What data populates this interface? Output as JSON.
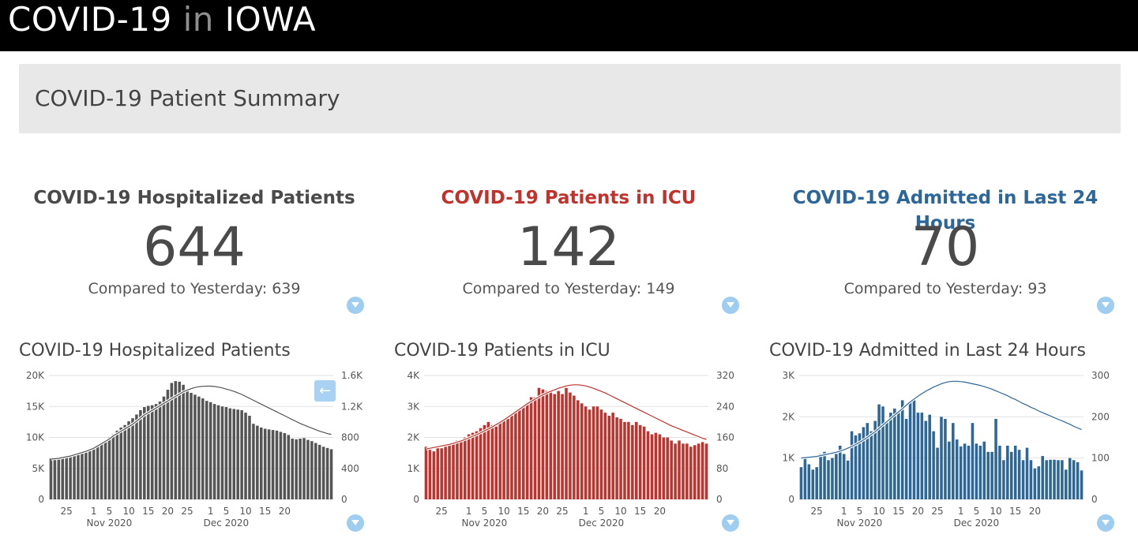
{
  "header": {
    "brand_part1": "COVID-19",
    "brand_part2": "in",
    "brand_part3": "IOWA"
  },
  "summary": {
    "title": "COVID-19 Patient Summary"
  },
  "kpis": [
    {
      "title": "COVID-19 Hospitalized Patients",
      "value": "644",
      "compare": "Compared to Yesterday: 639",
      "color": "#4a4a4a"
    },
    {
      "title": "COVID-19 Patients in ICU",
      "value": "142",
      "compare": "Compared to Yesterday: 149",
      "color": "#c0322b"
    },
    {
      "title": "COVID-19 Admitted in Last 24 Hours",
      "value": "70",
      "compare": "Compared to Yesterday: 93",
      "color": "#2d6698"
    }
  ],
  "icons": {
    "filter": "filter-icon",
    "back": "arrow-left-icon"
  },
  "back_glyph": "←",
  "chart_data": [
    {
      "type": "bar",
      "title": "COVID-19 Hospitalized Patients",
      "color": "#555555",
      "line_color": "#555555",
      "x_ticks": [
        "25",
        "1",
        "5",
        "10",
        "15",
        "20",
        "25",
        "1",
        "5",
        "10",
        "15",
        "20"
      ],
      "x_month_labels": [
        "Nov 2020",
        "Dec 2020"
      ],
      "y_left_ticks": [
        "0",
        "5K",
        "10K",
        "15K",
        "20K"
      ],
      "y_right_ticks": [
        "0",
        "400",
        "800",
        "1.2K",
        "1.6K"
      ],
      "ylim_left": [
        0,
        20000
      ],
      "ylim_right": [
        0,
        1600
      ],
      "grid": true,
      "values": [
        6600,
        6700,
        6800,
        6900,
        7000,
        7100,
        7200,
        7400,
        7600,
        7800,
        8000,
        8300,
        8700,
        9100,
        9500,
        10000,
        10500,
        11100,
        11600,
        12000,
        12600,
        13100,
        13700,
        14400,
        14900,
        15100,
        15200,
        15400,
        15800,
        16600,
        17700,
        18800,
        19100,
        19000,
        18500,
        17800,
        17200,
        16900,
        16600,
        16300,
        15900,
        15700,
        15400,
        15200,
        15000,
        14900,
        14700,
        14600,
        14500,
        14400,
        14000,
        13500,
        12200,
        11900,
        11600,
        11400,
        11300,
        11200,
        11100,
        10900,
        10700,
        10400,
        9800,
        9700,
        9800,
        9900,
        9600,
        9400,
        9100,
        8800,
        8500,
        8300,
        8100
      ],
      "line_values": [
        520,
        525,
        530,
        540,
        550,
        560,
        575,
        590,
        605,
        620,
        640,
        660,
        690,
        720,
        750,
        780,
        820,
        850,
        880,
        910,
        940,
        970,
        1010,
        1050,
        1090,
        1120,
        1150,
        1180,
        1210,
        1240,
        1270,
        1300,
        1330,
        1360,
        1390,
        1410,
        1430,
        1445,
        1455,
        1460,
        1462,
        1462,
        1458,
        1450,
        1440,
        1425,
        1410,
        1395,
        1375,
        1355,
        1330,
        1305,
        1280,
        1255,
        1230,
        1205,
        1180,
        1155,
        1130,
        1105,
        1080,
        1055,
        1030,
        1005,
        980,
        960,
        940,
        920,
        900,
        880,
        865,
        850,
        840
      ]
    },
    {
      "type": "bar",
      "title": "COVID-19 Patients in ICU",
      "color": "#c0322b",
      "line_color": "#c0322b",
      "x_ticks": [
        "25",
        "1",
        "5",
        "10",
        "15",
        "20",
        "25",
        "1",
        "5",
        "10",
        "15",
        "20"
      ],
      "x_month_labels": [
        "Nov 2020",
        "Dec 2020"
      ],
      "y_left_ticks": [
        "0",
        "1K",
        "2K",
        "3K",
        "4K"
      ],
      "y_right_ticks": [
        "0",
        "80",
        "160",
        "240",
        "320"
      ],
      "ylim_left": [
        0,
        4000
      ],
      "ylim_right": [
        0,
        320
      ],
      "grid": true,
      "values": [
        1700,
        1600,
        1550,
        1650,
        1650,
        1700,
        1750,
        1800,
        1900,
        1900,
        2000,
        2100,
        2150,
        2200,
        2300,
        2400,
        2500,
        2400,
        2350,
        2500,
        2550,
        2600,
        2700,
        2800,
        2900,
        3000,
        3050,
        3300,
        3300,
        3600,
        3550,
        3500,
        3450,
        3400,
        3500,
        3400,
        3600,
        3450,
        3350,
        3200,
        3100,
        3000,
        2900,
        3000,
        3000,
        2900,
        2800,
        2700,
        2800,
        2650,
        2600,
        2500,
        2500,
        2400,
        2500,
        2400,
        2350,
        2200,
        2100,
        2150,
        2100,
        2000,
        2000,
        1900,
        1800,
        1900,
        1800,
        1800,
        1700,
        1750,
        1800,
        1850,
        1800
      ],
      "line_values": [
        130,
        132,
        134,
        136,
        138,
        140,
        142,
        145,
        148,
        151,
        155,
        159,
        163,
        167,
        172,
        177,
        182,
        187,
        193,
        199,
        205,
        212,
        219,
        226,
        233,
        240,
        247,
        253,
        259,
        265,
        270,
        275,
        279,
        283,
        287,
        290,
        293,
        295,
        296,
        296,
        295,
        293,
        290,
        287,
        283,
        279,
        275,
        270,
        265,
        260,
        255,
        250,
        245,
        240,
        235,
        230,
        225,
        220,
        215,
        210,
        205,
        200,
        195,
        190,
        186,
        182,
        178,
        174,
        170,
        166,
        162,
        158,
        155
      ]
    },
    {
      "type": "bar",
      "title": "COVID-19 Admitted in Last 24 Hours",
      "color": "#2d6698",
      "line_color": "#2d6698",
      "x_ticks": [
        "25",
        "1",
        "5",
        "10",
        "15",
        "20",
        "25",
        "1",
        "5",
        "10",
        "15",
        "20"
      ],
      "x_month_labels": [
        "Nov 2020",
        "Dec 2020"
      ],
      "y_left_ticks": [
        "0",
        "1K",
        "2K",
        "3K"
      ],
      "y_right_ticks": [
        "0",
        "100",
        "200",
        "300"
      ],
      "ylim_left": [
        0,
        3000
      ],
      "ylim_right": [
        0,
        300
      ],
      "grid": true,
      "values": [
        780,
        1000,
        850,
        720,
        780,
        1100,
        1150,
        950,
        1000,
        1100,
        1300,
        1100,
        940,
        1650,
        1550,
        1600,
        1750,
        1850,
        1650,
        1900,
        2300,
        2250,
        1900,
        2100,
        2200,
        2100,
        2400,
        1950,
        2350,
        2400,
        2100,
        2100,
        1900,
        2050,
        1650,
        1250,
        2000,
        1950,
        1400,
        1850,
        1450,
        1280,
        1350,
        1300,
        1850,
        1350,
        1300,
        1400,
        1150,
        1150,
        1950,
        1300,
        950,
        1300,
        1150,
        1300,
        1200,
        950,
        1250,
        950,
        750,
        800,
        1050,
        950,
        960,
        960,
        950,
        950,
        720,
        1000,
        950,
        900,
        700
      ],
      "line_values": [
        100,
        101,
        102,
        103,
        104,
        106,
        108,
        110,
        112,
        114,
        117,
        120,
        124,
        128,
        133,
        138,
        144,
        150,
        157,
        164,
        172,
        180,
        188,
        196,
        204,
        212,
        220,
        228,
        236,
        243,
        250,
        256,
        262,
        267,
        272,
        276,
        280,
        283,
        285,
        286,
        286,
        285,
        284,
        282,
        280,
        278,
        276,
        273,
        270,
        267,
        263,
        259,
        255,
        251,
        246,
        242,
        237,
        232,
        228,
        223,
        219,
        214,
        210,
        206,
        202,
        198,
        194,
        190,
        186,
        182,
        177,
        173,
        169
      ]
    }
  ]
}
